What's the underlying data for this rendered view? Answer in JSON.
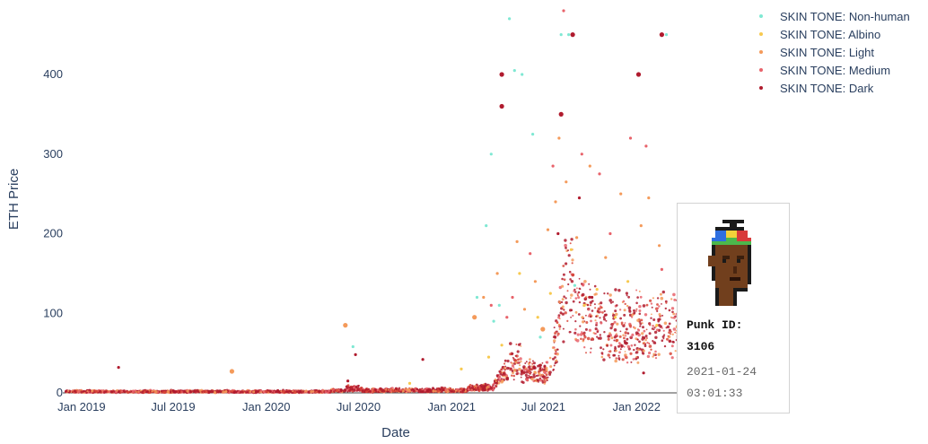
{
  "chart_data": {
    "type": "scatter",
    "title": "",
    "xlabel": "Date",
    "ylabel": "ETH Price",
    "x_range": [
      "2018-11-25",
      "2022-04-01"
    ],
    "ylim": [
      -8,
      485
    ],
    "x_ticks": [
      {
        "date": "2019-01-01",
        "label": "Jan 2019"
      },
      {
        "date": "2019-07-01",
        "label": "Jul 2019"
      },
      {
        "date": "2020-01-01",
        "label": "Jan 2020"
      },
      {
        "date": "2020-07-01",
        "label": "Jul 2020"
      },
      {
        "date": "2021-01-01",
        "label": "Jan 2021"
      },
      {
        "date": "2021-07-01",
        "label": "Jul 2021"
      },
      {
        "date": "2022-01-01",
        "label": "Jan 2022"
      }
    ],
    "y_ticks": [
      0,
      100,
      200,
      300,
      400
    ],
    "grid": false,
    "legend_position": "top-right",
    "series": [
      {
        "name": "SKIN TONE: Non-human",
        "color": "#7fe8d3",
        "points": [
          [
            "2021-03-20",
            300
          ],
          [
            "2021-03-10",
            210
          ],
          [
            "2021-04-25",
            470
          ],
          [
            "2021-05-20",
            400
          ],
          [
            "2021-06-10",
            325
          ],
          [
            "2021-08-05",
            450
          ],
          [
            "2021-08-20",
            450
          ],
          [
            "2021-05-05",
            405
          ],
          [
            "2022-03-01",
            450
          ],
          [
            "2020-06-20",
            58
          ],
          [
            "2021-02-20",
            120
          ],
          [
            "2021-04-05",
            110
          ],
          [
            "2021-09-01",
            135
          ],
          [
            "2021-03-25",
            90
          ],
          [
            "2021-06-25",
            70
          ]
        ]
      },
      {
        "name": "SKIN TONE: Albino",
        "color": "#f7c94f",
        "points": [
          [
            "2021-05-15",
            150
          ],
          [
            "2021-06-20",
            95
          ],
          [
            "2021-07-15",
            125
          ],
          [
            "2021-08-25",
            180
          ],
          [
            "2021-09-20",
            110
          ],
          [
            "2021-10-15",
            130
          ],
          [
            "2021-11-20",
            95
          ],
          [
            "2021-12-15",
            140
          ],
          [
            "2022-02-10",
            85
          ],
          [
            "2021-04-10",
            60
          ],
          [
            "2021-03-15",
            45
          ],
          [
            "2020-10-10",
            12
          ],
          [
            "2021-01-20",
            30
          ]
        ]
      },
      {
        "name": "SKIN TONE: Light",
        "color": "#f49a5a",
        "points": [
          [
            "2019-10-25",
            27
          ],
          [
            "2020-06-05",
            85
          ],
          [
            "2021-04-01",
            150
          ],
          [
            "2021-05-10",
            190
          ],
          [
            "2021-06-15",
            140
          ],
          [
            "2021-07-10",
            205
          ],
          [
            "2021-07-25",
            240
          ],
          [
            "2021-08-15",
            265
          ],
          [
            "2021-09-05",
            195
          ],
          [
            "2021-10-01",
            285
          ],
          [
            "2021-11-01",
            170
          ],
          [
            "2021-12-01",
            250
          ],
          [
            "2022-01-10",
            210
          ],
          [
            "2022-02-15",
            185
          ],
          [
            "2021-02-15",
            95
          ],
          [
            "2021-03-05",
            120
          ],
          [
            "2021-05-25",
            105
          ],
          [
            "2021-06-30",
            80
          ],
          [
            "2021-08-01",
            320
          ],
          [
            "2022-01-25",
            245
          ]
        ]
      },
      {
        "name": "SKIN TONE: Medium",
        "color": "#e8636b",
        "points": [
          [
            "2021-08-10",
            480
          ],
          [
            "2021-07-20",
            285
          ],
          [
            "2021-09-15",
            300
          ],
          [
            "2021-10-20",
            275
          ],
          [
            "2021-12-20",
            320
          ],
          [
            "2022-01-20",
            310
          ],
          [
            "2021-06-05",
            175
          ],
          [
            "2021-05-01",
            120
          ],
          [
            "2021-11-10",
            200
          ],
          [
            "2022-02-20",
            155
          ],
          [
            "2021-03-20",
            110
          ],
          [
            "2021-04-20",
            95
          ]
        ]
      },
      {
        "name": "SKIN TONE: Dark",
        "color": "#b01b2e",
        "points": [
          [
            "2021-04-10",
            400
          ],
          [
            "2021-04-10",
            360
          ],
          [
            "2021-08-28",
            450
          ],
          [
            "2022-01-05",
            400
          ],
          [
            "2022-02-20",
            450
          ],
          [
            "2021-09-10",
            245
          ],
          [
            "2021-07-30",
            200
          ],
          [
            "2021-08-05",
            350
          ],
          [
            "2020-06-10",
            15
          ],
          [
            "2019-03-15",
            32
          ],
          [
            "2020-06-25",
            48
          ],
          [
            "2020-11-05",
            42
          ],
          [
            "2021-10-05",
            120
          ],
          [
            "2022-01-15",
            25
          ]
        ]
      }
    ]
  },
  "tooltip": {
    "punk_label": "Punk ID:",
    "punk_id": "3106",
    "date": "2021-01-24",
    "time": "03:01:33"
  }
}
